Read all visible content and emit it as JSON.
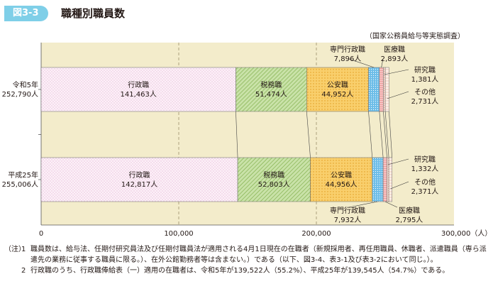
{
  "header": {
    "figure_no": "図3-3",
    "title": "職種別職員数"
  },
  "source": "（国家公務員給与等実態調査）",
  "chart_data": {
    "type": "bar",
    "orientation": "horizontal",
    "stacked": true,
    "categories": [
      "令和5年\n252,790人",
      "平成25年\n255,006人"
    ],
    "series": [
      {
        "name": "行政職",
        "values": [
          141463,
          142817
        ],
        "labels": [
          "141,463人",
          "142,817人"
        ],
        "color": "#f7e6f2"
      },
      {
        "name": "税務職",
        "values": [
          51474,
          52803
        ],
        "labels": [
          "51,474人",
          "52,803人"
        ],
        "color": "#bcd99a"
      },
      {
        "name": "公安職",
        "values": [
          44952,
          44956
        ],
        "labels": [
          "44,952人",
          "44,956人"
        ],
        "color": "#f7c55c"
      },
      {
        "name": "専門行政職",
        "values": [
          7896,
          7932
        ],
        "labels": [
          "7,896人",
          "7,932人"
        ],
        "color": "#5eb5e3"
      },
      {
        "name": "医療職",
        "values": [
          2893,
          2795
        ],
        "labels": [
          "2,893人",
          "2,795人"
        ],
        "color": "#f3b2b2"
      },
      {
        "name": "研究職",
        "values": [
          1381,
          1332
        ],
        "labels": [
          "1,381人",
          "1,332人"
        ],
        "color": "#f7d9c9"
      },
      {
        "name": "その他",
        "values": [
          2731,
          2371
        ],
        "labels": [
          "2,731人",
          "2,371人"
        ],
        "color": "#fbeadf"
      }
    ],
    "x_ticks": [
      0,
      100000,
      200000,
      300000
    ],
    "x_tick_labels": [
      "0",
      "100,000",
      "200,000",
      "300,000（人）"
    ],
    "xlim": [
      0,
      300000
    ],
    "grid": true
  },
  "notes": [
    {
      "mark": "（注）",
      "num": "1",
      "text": "職員数は、給与法、任期付研究員法及び任期付職員法が適用される4月1日現在の在職者（新規採用者、再任用職員、休職者、派遣職員（専ら派遣先の業務に従事する職員に限る。）、在外公館勤務者等は含まない。）である（以下、図3-4、表3-1及び表3-2において同じ。）。"
    },
    {
      "mark": "",
      "num": "2",
      "text": "行政職のうち、行政職俸給表（一）適用の在職者は、令和5年が139,522人（55.2%）、平成25年が139,545人（54.7%）である。"
    }
  ]
}
